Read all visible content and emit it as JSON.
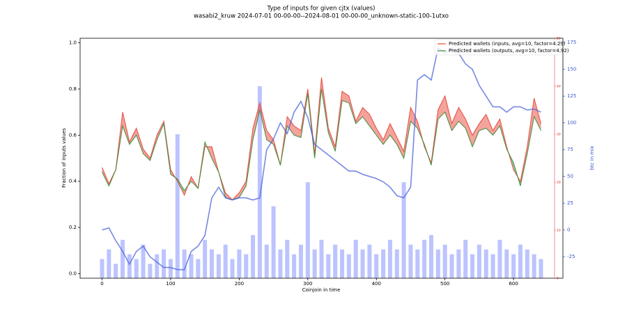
{
  "chart_data": {
    "type": "line",
    "title": "Type of inputs for given cjtx (values)",
    "subtitle": "wasabi2_kruw 2024-07-01 00-00-00--2024-08-01 00-00-00_unknown-static-100-1utxo",
    "xlabel": "Coinjoin in time",
    "ylabel": "Fraction of inputs values",
    "y2label": "btc in mix",
    "x": [
      0,
      10,
      20,
      30,
      40,
      50,
      60,
      70,
      80,
      90,
      100,
      110,
      120,
      130,
      140,
      150,
      160,
      170,
      180,
      190,
      200,
      210,
      220,
      230,
      240,
      250,
      260,
      270,
      280,
      290,
      300,
      310,
      320,
      330,
      340,
      350,
      360,
      370,
      380,
      390,
      400,
      410,
      420,
      430,
      440,
      450,
      460,
      470,
      480,
      490,
      500,
      510,
      520,
      530,
      540,
      550,
      560,
      570,
      580,
      590,
      600,
      610,
      620,
      630,
      640
    ],
    "xlim": [
      -32,
      672
    ],
    "xticks": [
      0,
      100,
      200,
      300,
      400,
      500,
      600
    ],
    "ylim": [
      -0.02,
      1.02
    ],
    "yticks": [
      {
        "value": 0,
        "label": "0.0"
      },
      0.2,
      0.4,
      0.6,
      0.8,
      {
        "value": 1,
        "label": "1.0"
      }
    ],
    "y2lim": [
      -45,
      179
    ],
    "y2ticks": [
      -25,
      0,
      25,
      50,
      75,
      100,
      125,
      150,
      175
    ],
    "y3lim": [
      0,
      50
    ],
    "y3ticks": [
      0,
      10,
      20,
      30,
      40,
      50
    ],
    "legend": "upper right",
    "series": [
      {
        "name": "Predicted wallets (inputs, avg=10, factor=4.29)",
        "color": "#e8473a",
        "values": [
          0.46,
          0.39,
          0.45,
          0.7,
          0.57,
          0.63,
          0.54,
          0.5,
          0.6,
          0.66,
          0.45,
          0.4,
          0.34,
          0.42,
          0.37,
          0.55,
          0.55,
          0.44,
          0.35,
          0.32,
          0.35,
          0.4,
          0.63,
          0.74,
          0.62,
          0.58,
          0.47,
          0.68,
          0.64,
          0.62,
          0.8,
          0.52,
          0.85,
          0.63,
          0.55,
          0.79,
          0.77,
          0.66,
          0.72,
          0.69,
          0.63,
          0.58,
          0.65,
          0.59,
          0.53,
          0.72,
          0.66,
          0.55,
          0.48,
          0.71,
          0.77,
          0.65,
          0.72,
          0.67,
          0.6,
          0.65,
          0.69,
          0.62,
          0.67,
          0.55,
          0.45,
          0.4,
          0.55,
          0.76,
          0.65
        ]
      },
      {
        "name": "Predicted wallets (outputs, avg=10, factor=4.92)",
        "color": "#3a8a3a",
        "values": [
          0.44,
          0.38,
          0.45,
          0.64,
          0.56,
          0.6,
          0.52,
          0.49,
          0.58,
          0.65,
          0.43,
          0.41,
          0.36,
          0.4,
          0.37,
          0.57,
          0.5,
          0.44,
          0.33,
          0.32,
          0.33,
          0.38,
          0.58,
          0.71,
          0.58,
          0.56,
          0.47,
          0.64,
          0.6,
          0.59,
          0.78,
          0.5,
          0.8,
          0.61,
          0.53,
          0.75,
          0.74,
          0.65,
          0.68,
          0.64,
          0.6,
          0.56,
          0.6,
          0.56,
          0.5,
          0.66,
          0.63,
          0.56,
          0.47,
          0.67,
          0.7,
          0.62,
          0.66,
          0.63,
          0.55,
          0.62,
          0.63,
          0.6,
          0.64,
          0.54,
          0.48,
          0.38,
          0.52,
          0.68,
          0.62
        ]
      }
    ],
    "y2_series": {
      "color": "#4a62d8",
      "axis": "y2",
      "values": [
        0,
        2,
        -10,
        -20,
        -32,
        -20,
        -15,
        -25,
        -30,
        -35,
        -35,
        -37,
        -37,
        -20,
        -15,
        -5,
        30,
        40,
        30,
        28,
        30,
        30,
        28,
        30,
        75,
        85,
        100,
        90,
        110,
        120,
        105,
        80,
        75,
        70,
        65,
        60,
        55,
        55,
        52,
        50,
        48,
        45,
        40,
        32,
        30,
        40,
        140,
        145,
        140,
        170,
        165,
        170,
        165,
        155,
        150,
        135,
        125,
        115,
        115,
        110,
        115,
        115,
        112,
        113,
        110
      ]
    },
    "y3_series": {
      "color": "#8f9cff",
      "axis": "y3",
      "values": [
        4,
        6,
        3,
        8,
        5,
        4,
        7,
        3,
        5,
        6,
        4,
        30,
        6,
        5,
        4,
        8,
        6,
        5,
        7,
        4,
        6,
        5,
        9,
        40,
        7,
        15,
        6,
        8,
        5,
        7,
        20,
        6,
        8,
        5,
        7,
        6,
        5,
        8,
        6,
        7,
        5,
        6,
        8,
        6,
        20,
        7,
        6,
        8,
        9,
        6,
        7,
        5,
        6,
        8,
        5,
        7,
        6,
        5,
        8,
        6,
        5,
        7,
        6,
        5,
        4
      ]
    }
  }
}
